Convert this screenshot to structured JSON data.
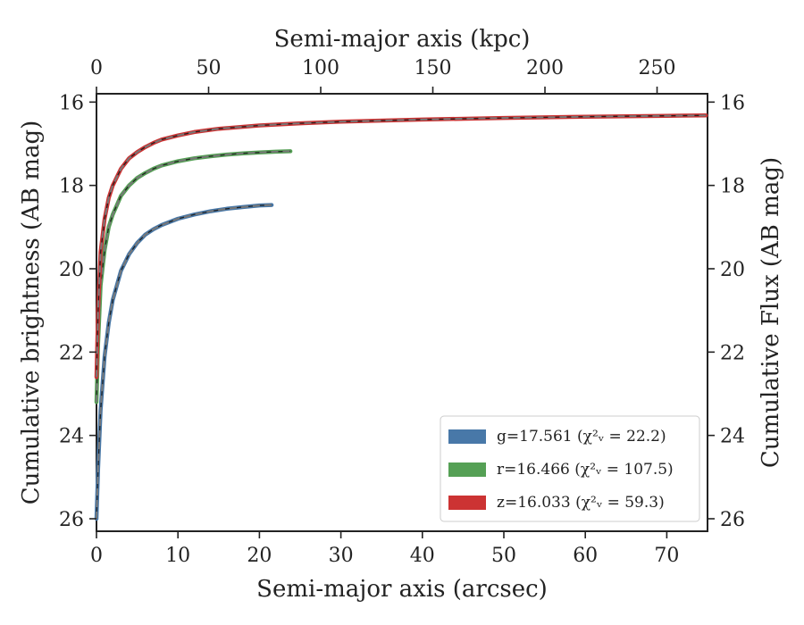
{
  "chart_data": {
    "type": "line",
    "xlabel": "Semi-major axis (arcsec)",
    "xlabel_top": "Semi-major axis (kpc)",
    "ylabel": "Cumulative brightness (AB mag)",
    "ylabel_right": "Cumulative Flux (AB mag)",
    "xlim": [
      0,
      75
    ],
    "xlim_top": [
      0,
      272.5
    ],
    "ylim": [
      26.3,
      15.8
    ],
    "x_ticks": [
      0,
      10,
      20,
      30,
      40,
      50,
      60,
      70
    ],
    "x_ticks_top": [
      0,
      50,
      100,
      150,
      200,
      250
    ],
    "y_ticks": [
      16,
      18,
      20,
      22,
      24,
      26
    ],
    "grid": false,
    "legend_placement": "lower-right",
    "series": [
      {
        "name": "g=17.561 (χ²ᵥ = 22.2)",
        "color": "#4878a8",
        "x": [
          0,
          0.2,
          0.5,
          1,
          1.5,
          2,
          3,
          4,
          5,
          6,
          7,
          8,
          10,
          12,
          14,
          16,
          18,
          20,
          21.5
        ],
        "y": [
          26.0,
          24.8,
          23.4,
          22.1,
          21.3,
          20.75,
          20.05,
          19.65,
          19.38,
          19.18,
          19.05,
          18.95,
          18.8,
          18.7,
          18.62,
          18.56,
          18.52,
          18.48,
          18.47
        ]
      },
      {
        "name": "r=16.466 (χ²ᵥ = 107.5)",
        "color": "#55a055",
        "x": [
          0,
          0.2,
          0.5,
          1,
          1.5,
          2,
          3,
          4,
          5,
          6,
          7,
          8,
          10,
          12,
          14,
          16,
          18,
          20,
          22,
          23.8
        ],
        "y": [
          23.2,
          21.8,
          20.4,
          19.55,
          19.0,
          18.7,
          18.25,
          18.0,
          17.82,
          17.7,
          17.6,
          17.52,
          17.42,
          17.35,
          17.3,
          17.26,
          17.23,
          17.21,
          17.19,
          17.18
        ]
      },
      {
        "name": "z=16.033 (χ²ᵥ = 59.3)",
        "color": "#cc3333",
        "x": [
          0,
          0.2,
          0.5,
          1,
          1.5,
          2,
          3,
          4,
          5,
          6,
          7,
          8,
          10,
          12,
          15,
          20,
          25,
          30,
          40,
          50,
          60,
          70,
          74.8
        ],
        "y": [
          22.6,
          21.0,
          19.6,
          18.8,
          18.3,
          18.0,
          17.6,
          17.35,
          17.2,
          17.08,
          16.98,
          16.9,
          16.8,
          16.72,
          16.64,
          16.56,
          16.51,
          16.47,
          16.42,
          16.38,
          16.35,
          16.33,
          16.32
        ]
      }
    ]
  }
}
